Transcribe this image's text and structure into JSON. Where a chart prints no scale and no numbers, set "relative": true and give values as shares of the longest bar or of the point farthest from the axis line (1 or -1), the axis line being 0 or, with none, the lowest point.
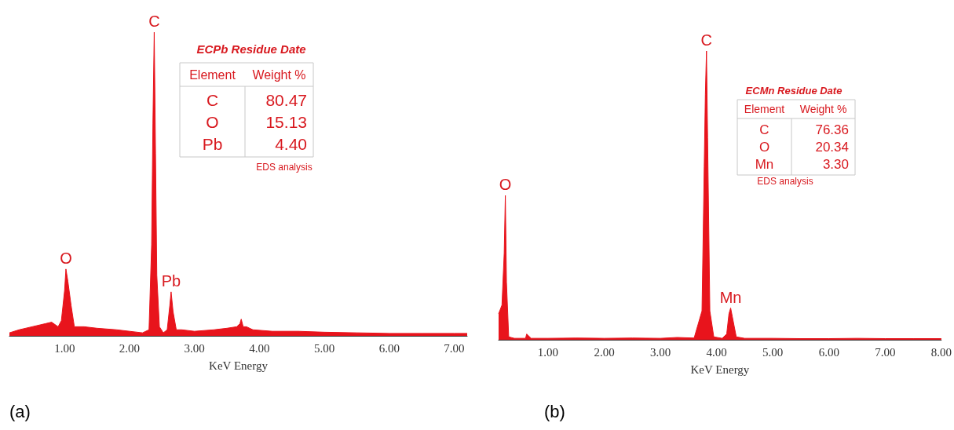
{
  "chart_data": [
    {
      "type": "area",
      "relative": true,
      "xlabel": "KeV Energy",
      "xlim": [
        0.15,
        7.2
      ],
      "xticks": [
        {
          "value": 1,
          "label": "1.00"
        },
        {
          "value": 2,
          "label": "2.00"
        },
        {
          "value": 3,
          "label": "3.00"
        },
        {
          "value": 4,
          "label": "4.00"
        },
        {
          "value": 5,
          "label": "5.00"
        },
        {
          "value": 6,
          "label": "6.00"
        },
        {
          "value": 7,
          "label": "7.00"
        }
      ],
      "tick_labels": "x",
      "grid": false,
      "marker": "none",
      "x": [
        0.15,
        0.3,
        0.5,
        0.7,
        0.8,
        0.9,
        0.95,
        1.0,
        1.02,
        1.05,
        1.1,
        1.15,
        1.3,
        1.5,
        1.8,
        2.0,
        2.2,
        2.3,
        2.34,
        2.36,
        2.38,
        2.4,
        2.42,
        2.46,
        2.52,
        2.58,
        2.62,
        2.64,
        2.67,
        2.72,
        2.8,
        3.0,
        3.3,
        3.5,
        3.65,
        3.7,
        3.72,
        3.75,
        3.8,
        3.9,
        4.2,
        4.6,
        5.0,
        5.5,
        6.0,
        6.5,
        7.0,
        7.2
      ],
      "series": [
        {
          "color": "#e8141c",
          "values": [
            0.01,
            0.02,
            0.03,
            0.04,
            0.045,
            0.03,
            0.05,
            0.15,
            0.22,
            0.18,
            0.1,
            0.03,
            0.03,
            0.025,
            0.02,
            0.015,
            0.01,
            0.02,
            0.3,
            0.7,
            1,
            0.6,
            0.2,
            0.03,
            0.01,
            0.02,
            0.1,
            0.145,
            0.08,
            0.02,
            0.02,
            0.015,
            0.02,
            0.025,
            0.03,
            0.04,
            0.055,
            0.03,
            0.03,
            0.02,
            0.015,
            0.015,
            0.012,
            0.01,
            0.008,
            0.008,
            0.008,
            0.008
          ]
        }
      ],
      "annotations": [
        {
          "text": "O",
          "x": 1.02,
          "y": 0.22
        },
        {
          "text": "C",
          "x": 2.38,
          "y": 1
        },
        {
          "text": "Pb",
          "x": 2.64,
          "y": 0.145
        },
        "ECPb Residue Date",
        "Element",
        "Weight %",
        "C",
        "80.47",
        "O",
        "15.13",
        "Pb",
        "4.40",
        "EDS analysis",
        "(a)"
      ]
    },
    {
      "type": "area",
      "relative": true,
      "xlabel": "KeV Energy",
      "xlim": [
        0.12,
        8.0
      ],
      "xticks": [
        {
          "value": 1,
          "label": "1.00"
        },
        {
          "value": 2,
          "label": "2.00"
        },
        {
          "value": 3,
          "label": "3.00"
        },
        {
          "value": 4,
          "label": "4.00"
        },
        {
          "value": 5,
          "label": "5.00"
        },
        {
          "value": 6,
          "label": "6.00"
        },
        {
          "value": 7,
          "label": "7.00"
        },
        {
          "value": 8,
          "label": "8.00"
        }
      ],
      "tick_labels": "x",
      "grid": false,
      "marker": "none",
      "x": [
        0.12,
        0.18,
        0.22,
        0.24,
        0.26,
        0.3,
        0.4,
        0.6,
        0.62,
        0.7,
        1.0,
        1.5,
        2.0,
        2.5,
        3.0,
        3.3,
        3.6,
        3.74,
        3.78,
        3.8,
        3.82,
        3.84,
        3.88,
        3.95,
        4.1,
        4.18,
        4.22,
        4.25,
        4.28,
        4.35,
        4.5,
        5.0,
        5.5,
        6.0,
        6.5,
        7.0,
        7.5,
        8.0
      ],
      "series": [
        {
          "color": "#e8141c",
          "values": [
            0.09,
            0.12,
            0.3,
            0.5,
            0.2,
            0.01,
            0.005,
            0.005,
            0.02,
            0.005,
            0.005,
            0.006,
            0.005,
            0.006,
            0.005,
            0.008,
            0.006,
            0.1,
            0.6,
            0.85,
            1,
            0.7,
            0.1,
            0.01,
            0.005,
            0.02,
            0.09,
            0.11,
            0.08,
            0.01,
            0.005,
            0.005,
            0.004,
            0.004,
            0.005,
            0.004,
            0.004,
            0.004
          ]
        }
      ],
      "annotations": [
        {
          "text": "O",
          "x": 0.24,
          "y": 0.5
        },
        {
          "text": "C",
          "x": 3.82,
          "y": 1
        },
        {
          "text": "Mn",
          "x": 4.25,
          "y": 0.11
        },
        "ECMn Residue Date",
        "Element",
        "Weight %",
        "C",
        "76.36",
        "O",
        "20.34",
        "Mn",
        "3.30",
        "EDS analysis",
        "(b)"
      ]
    }
  ]
}
